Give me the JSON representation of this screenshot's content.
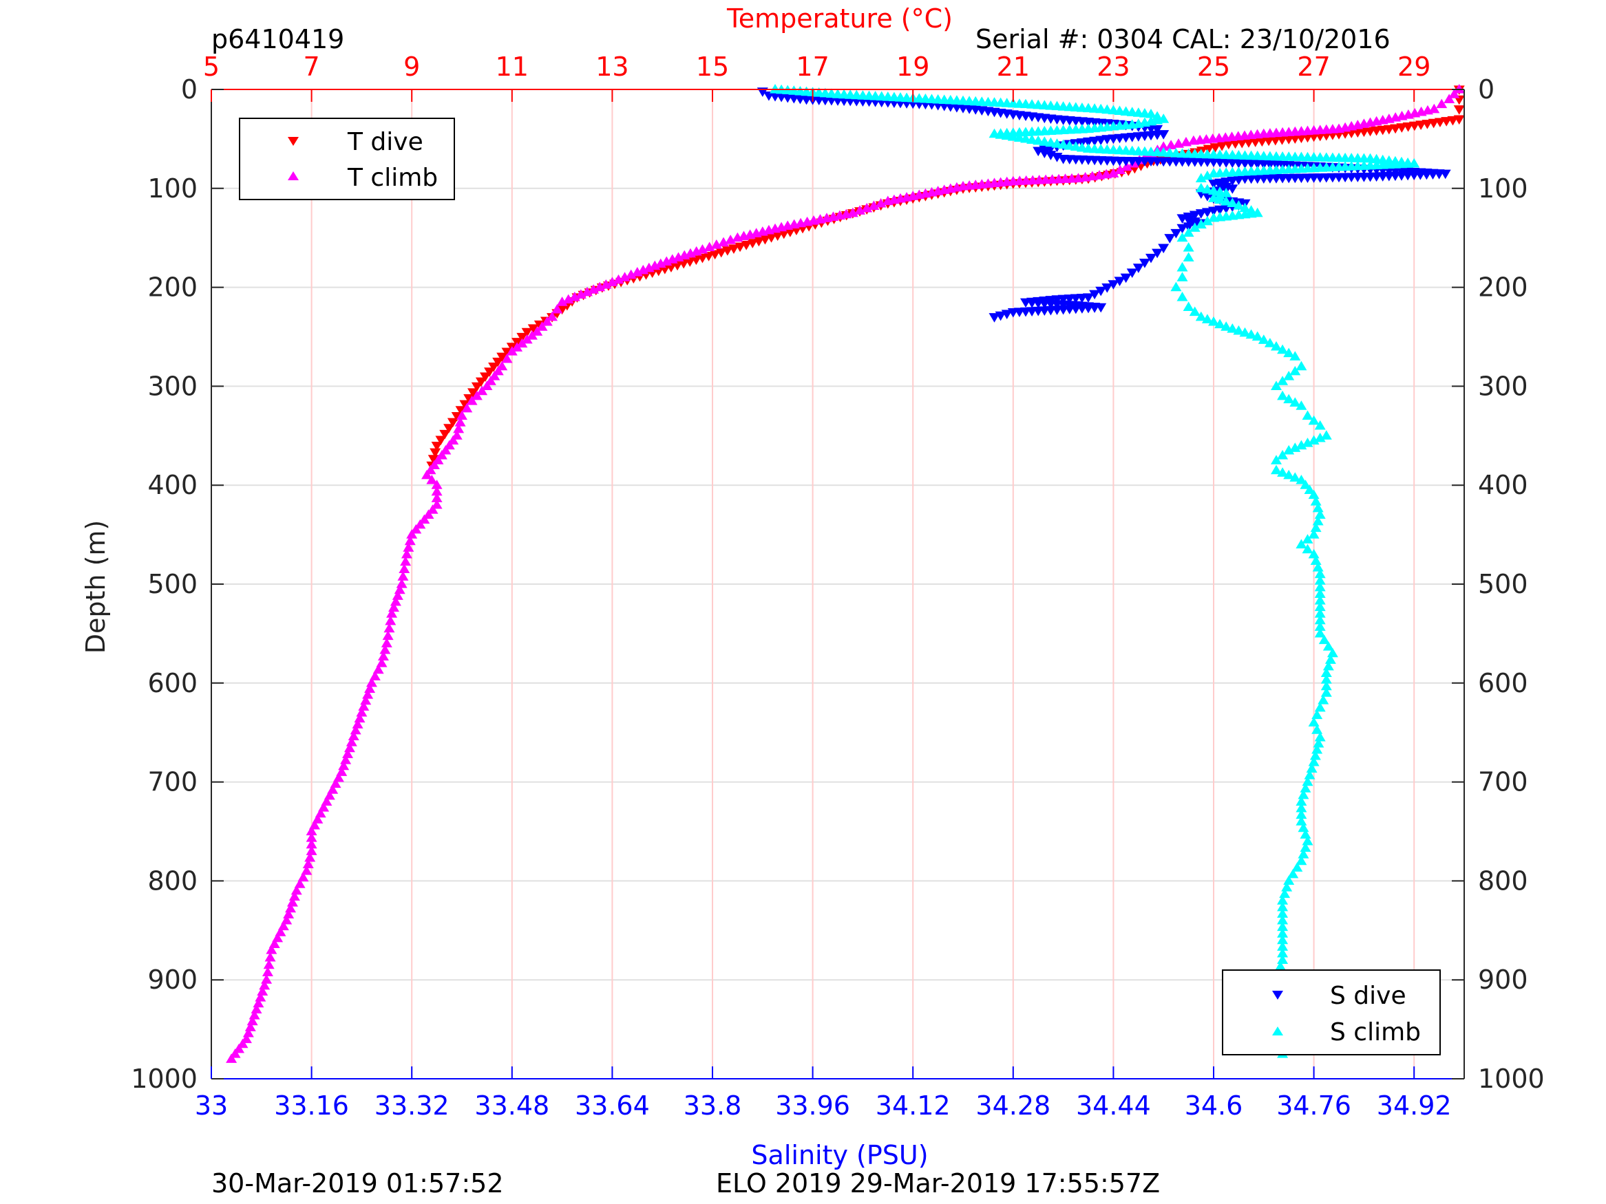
{
  "chart_data": {
    "type": "scatter",
    "top_left_label": "p6410419",
    "top_right_label": "Serial #: 0304  CAL: 23/10/2016",
    "footer_left": "30-Mar-2019 01:57:52",
    "footer_center": "ELO 2019 29-Mar-2019 17:55:57Z",
    "y_axis": {
      "label": "Depth (m)",
      "range": [
        0,
        1000
      ],
      "reversed": true,
      "ticks": [
        "0",
        "100",
        "200",
        "300",
        "400",
        "500",
        "600",
        "700",
        "800",
        "900",
        "1000"
      ]
    },
    "temperature_axis": {
      "label": "Temperature (°C)",
      "position": "top",
      "range": [
        5,
        30
      ],
      "ticks": [
        "5",
        "7",
        "9",
        "11",
        "13",
        "15",
        "17",
        "19",
        "21",
        "23",
        "25",
        "27",
        "29"
      ]
    },
    "salinity_axis": {
      "label": "Salinity (PSU)",
      "position": "bottom",
      "range": [
        33,
        35
      ],
      "ticks": [
        "33",
        "33.16",
        "33.32",
        "33.48",
        "33.64",
        "33.8",
        "33.96",
        "34.12",
        "34.28",
        "34.44",
        "34.6",
        "34.76",
        "34.92"
      ]
    },
    "grid": true,
    "legend_temperature": {
      "placement": "top-left",
      "entries": [
        "T dive",
        "T climb"
      ]
    },
    "legend_salinity": {
      "placement": "bottom-right",
      "entries": [
        "S dive",
        "S climb"
      ]
    },
    "colors": {
      "t_dive": "#ff0000",
      "t_climb": "#ff00ff",
      "s_dive": "#0000ff",
      "s_climb": "#00ffff",
      "temp_axis": "#ff0000",
      "sal_axis": "#0000ff",
      "grid_red": "#ffcccc",
      "grid_gray": "#e0e0e0"
    },
    "series": [
      {
        "name": "T dive",
        "axis": "temperature",
        "marker": "triangle-down",
        "color": "#ff0000",
        "points": [
          [
            29.9,
            0
          ],
          [
            29.9,
            10
          ],
          [
            29.9,
            20
          ],
          [
            29.9,
            30
          ],
          [
            28.5,
            40
          ],
          [
            26.5,
            50
          ],
          [
            25.3,
            55
          ],
          [
            24.5,
            65
          ],
          [
            23.8,
            72
          ],
          [
            23.3,
            82
          ],
          [
            22.5,
            90
          ],
          [
            21.0,
            95
          ],
          [
            20.0,
            100
          ],
          [
            19.5,
            105
          ],
          [
            18.5,
            115
          ],
          [
            17.8,
            125
          ],
          [
            16.8,
            140
          ],
          [
            15.8,
            155
          ],
          [
            14.8,
            170
          ],
          [
            13.8,
            185
          ],
          [
            12.8,
            200
          ],
          [
            12.3,
            210
          ],
          [
            11.8,
            230
          ],
          [
            11.3,
            245
          ],
          [
            10.8,
            270
          ],
          [
            10.3,
            300
          ],
          [
            9.9,
            330
          ],
          [
            9.5,
            360
          ],
          [
            9.4,
            380
          ]
        ]
      },
      {
        "name": "T climb",
        "axis": "temperature",
        "marker": "triangle-up",
        "color": "#ff00ff",
        "points": [
          [
            29.9,
            0
          ],
          [
            29.7,
            10
          ],
          [
            29.4,
            20
          ],
          [
            28.5,
            30
          ],
          [
            27.5,
            40
          ],
          [
            26.0,
            45
          ],
          [
            24.6,
            52
          ],
          [
            24.0,
            58
          ],
          [
            23.4,
            75
          ],
          [
            23.0,
            85
          ],
          [
            22.3,
            90
          ],
          [
            21.0,
            93
          ],
          [
            20.0,
            98
          ],
          [
            19.5,
            103
          ],
          [
            18.5,
            113
          ],
          [
            17.8,
            125
          ],
          [
            16.5,
            138
          ],
          [
            15.5,
            150
          ],
          [
            14.8,
            162
          ],
          [
            14.2,
            172
          ],
          [
            13.5,
            185
          ],
          [
            13.0,
            195
          ],
          [
            12.5,
            205
          ],
          [
            12.0,
            215
          ],
          [
            11.8,
            230
          ],
          [
            11.5,
            245
          ],
          [
            11.0,
            265
          ],
          [
            10.8,
            280
          ],
          [
            10.5,
            300
          ],
          [
            10.2,
            315
          ],
          [
            10.0,
            330
          ],
          [
            9.9,
            350
          ],
          [
            9.6,
            370
          ],
          [
            9.3,
            390
          ],
          [
            9.5,
            400
          ],
          [
            9.5,
            420
          ],
          [
            9.0,
            450
          ],
          [
            8.9,
            470
          ],
          [
            8.8,
            500
          ],
          [
            8.6,
            530
          ],
          [
            8.5,
            560
          ],
          [
            8.4,
            580
          ],
          [
            8.2,
            600
          ],
          [
            8.0,
            630
          ],
          [
            7.8,
            660
          ],
          [
            7.6,
            690
          ],
          [
            7.3,
            720
          ],
          [
            7.0,
            750
          ],
          [
            7.0,
            770
          ],
          [
            6.9,
            790
          ],
          [
            6.7,
            810
          ],
          [
            6.5,
            840
          ],
          [
            6.2,
            870
          ],
          [
            6.1,
            900
          ],
          [
            5.9,
            930
          ],
          [
            5.7,
            960
          ],
          [
            5.4,
            980
          ]
        ]
      },
      {
        "name": "S dive",
        "axis": "salinity",
        "marker": "triangle-down",
        "color": "#0000ff",
        "points": [
          [
            33.88,
            2
          ],
          [
            33.89,
            6
          ],
          [
            33.95,
            10
          ],
          [
            34.05,
            12
          ],
          [
            34.15,
            15
          ],
          [
            34.22,
            20
          ],
          [
            34.28,
            25
          ],
          [
            34.35,
            30
          ],
          [
            34.45,
            35
          ],
          [
            34.51,
            40
          ],
          [
            34.52,
            45
          ],
          [
            34.43,
            50
          ],
          [
            34.37,
            55
          ],
          [
            34.32,
            62
          ],
          [
            34.36,
            70
          ],
          [
            34.45,
            72
          ],
          [
            34.6,
            73
          ],
          [
            34.78,
            78
          ],
          [
            34.97,
            85
          ],
          [
            34.85,
            88
          ],
          [
            34.65,
            90
          ],
          [
            34.6,
            95
          ],
          [
            34.63,
            100
          ],
          [
            34.58,
            105
          ],
          [
            34.6,
            110
          ],
          [
            34.65,
            115
          ],
          [
            34.62,
            120
          ],
          [
            34.58,
            125
          ],
          [
            34.55,
            130
          ],
          [
            34.58,
            135
          ],
          [
            34.55,
            140
          ],
          [
            34.53,
            150
          ],
          [
            34.52,
            160
          ],
          [
            34.5,
            170
          ],
          [
            34.48,
            180
          ],
          [
            34.46,
            190
          ],
          [
            34.43,
            200
          ],
          [
            34.4,
            210
          ],
          [
            34.35,
            212
          ],
          [
            34.3,
            215
          ],
          [
            34.38,
            218
          ],
          [
            34.42,
            220
          ],
          [
            34.28,
            225
          ],
          [
            34.25,
            230
          ]
        ]
      },
      {
        "name": "S climb",
        "axis": "salinity",
        "marker": "triangle-up",
        "color": "#00ffff",
        "points": [
          [
            33.9,
            0
          ],
          [
            34.0,
            5
          ],
          [
            34.15,
            10
          ],
          [
            34.3,
            15
          ],
          [
            34.42,
            20
          ],
          [
            34.5,
            25
          ],
          [
            34.52,
            30
          ],
          [
            34.48,
            35
          ],
          [
            34.4,
            40
          ],
          [
            34.25,
            45
          ],
          [
            34.3,
            50
          ],
          [
            34.4,
            60
          ],
          [
            34.55,
            65
          ],
          [
            34.7,
            68
          ],
          [
            34.85,
            70
          ],
          [
            34.92,
            75
          ],
          [
            34.75,
            80
          ],
          [
            34.6,
            85
          ],
          [
            34.58,
            90
          ],
          [
            34.58,
            100
          ],
          [
            34.62,
            105
          ],
          [
            34.6,
            110
          ],
          [
            34.63,
            115
          ],
          [
            34.67,
            125
          ],
          [
            34.6,
            130
          ],
          [
            34.57,
            140
          ],
          [
            34.55,
            150
          ],
          [
            34.56,
            160
          ],
          [
            34.56,
            170
          ],
          [
            34.55,
            180
          ],
          [
            34.55,
            190
          ],
          [
            34.54,
            200
          ],
          [
            34.55,
            210
          ],
          [
            34.56,
            220
          ],
          [
            34.58,
            230
          ],
          [
            34.62,
            240
          ],
          [
            34.67,
            250
          ],
          [
            34.7,
            260
          ],
          [
            34.73,
            270
          ],
          [
            34.74,
            280
          ],
          [
            34.72,
            290
          ],
          [
            34.7,
            300
          ],
          [
            34.71,
            310
          ],
          [
            34.74,
            320
          ],
          [
            34.75,
            330
          ],
          [
            34.77,
            340
          ],
          [
            34.78,
            350
          ],
          [
            34.72,
            365
          ],
          [
            34.7,
            375
          ],
          [
            34.7,
            385
          ],
          [
            34.74,
            395
          ],
          [
            34.76,
            410
          ],
          [
            34.77,
            430
          ],
          [
            34.76,
            450
          ],
          [
            34.74,
            460
          ],
          [
            34.76,
            470
          ],
          [
            34.77,
            490
          ],
          [
            34.77,
            510
          ],
          [
            34.77,
            530
          ],
          [
            34.77,
            550
          ],
          [
            34.79,
            570
          ],
          [
            34.78,
            590
          ],
          [
            34.78,
            610
          ],
          [
            34.77,
            625
          ],
          [
            34.76,
            640
          ],
          [
            34.77,
            655
          ],
          [
            34.76,
            680
          ],
          [
            34.75,
            700
          ],
          [
            34.74,
            720
          ],
          [
            34.74,
            740
          ],
          [
            34.75,
            760
          ],
          [
            34.74,
            780
          ],
          [
            34.72,
            800
          ],
          [
            34.71,
            820
          ],
          [
            34.71,
            840
          ],
          [
            34.71,
            860
          ],
          [
            34.71,
            880
          ],
          [
            34.7,
            900
          ],
          [
            34.7,
            920
          ],
          [
            34.71,
            940
          ],
          [
            34.71,
            960
          ],
          [
            34.71,
            975
          ]
        ]
      }
    ]
  }
}
